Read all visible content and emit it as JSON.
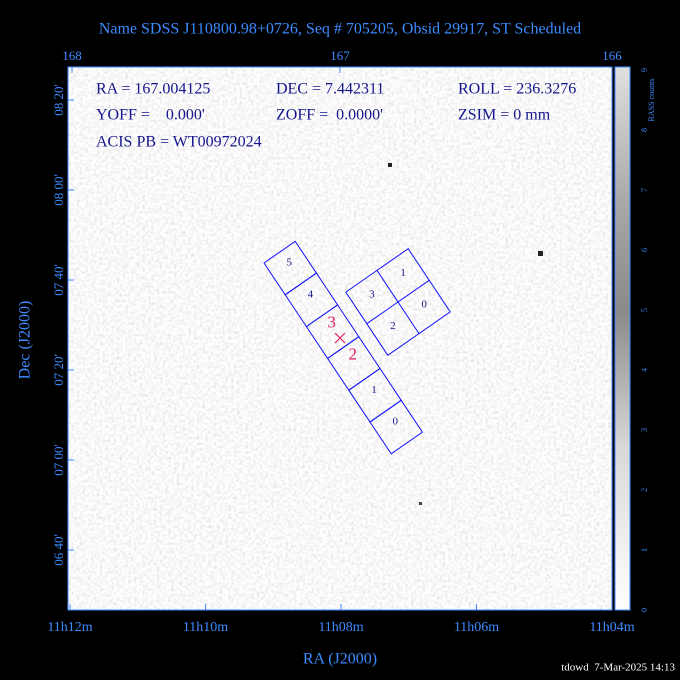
{
  "title": "Name SDSS J110800.98+0726, Seq # 705205, Obsid 29917, ST Scheduled",
  "info": [
    "RA = 167.004125",
    "DEC = 7.442311",
    "ROLL = 236.3276",
    "YOFF =    0.000'",
    "ZOFF =  0.0000'",
    "ZSIM = 0 mm",
    "ACIS PB = WT00972024"
  ],
  "axes": {
    "top_ticks": [
      "168",
      "167",
      "166"
    ],
    "bottom_ticks": [
      "11h12m",
      "11h10m",
      "11h08m",
      "11h06m",
      "11h04m"
    ],
    "left_ticks": [
      "08 20'",
      "08 00'",
      "07 40'",
      "07 20'",
      "07 00'",
      "06 40'"
    ],
    "x_label": "RA (J2000)",
    "y_label": "Dec (J2000)"
  },
  "colorbar": {
    "label": "RASS counts",
    "ticks": [
      "0",
      "1",
      "2",
      "3",
      "4",
      "5",
      "6",
      "7",
      "8",
      "9"
    ]
  },
  "acis_s": {
    "chips": [
      "5",
      "4",
      "3",
      "2",
      "1",
      "0"
    ]
  },
  "acis_i": {
    "chips": [
      "1",
      "3",
      "0",
      "2"
    ]
  },
  "footer": "tdowd  7-Mar-2025 14:13"
}
